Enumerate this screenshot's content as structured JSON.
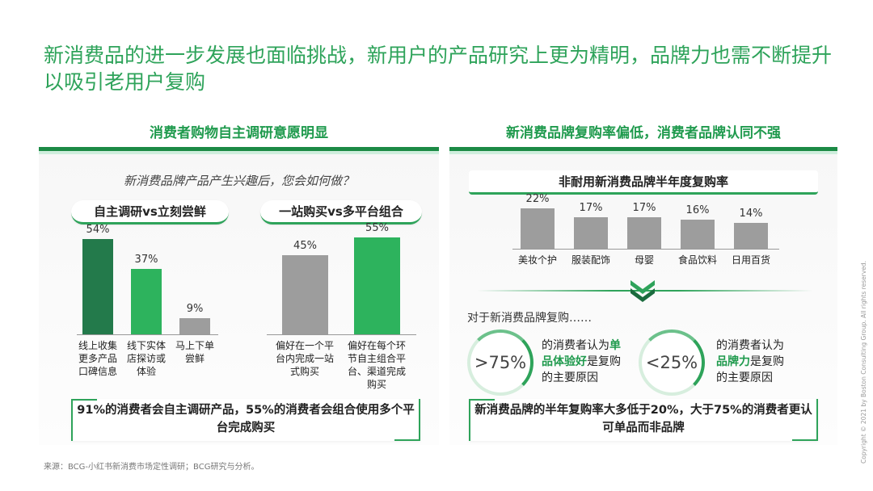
{
  "title": "新消费品的进一步发展也面临挑战，新用户的产品研究上更为精明，品牌力也需不断提升以吸引老用户复购",
  "left_panel": {
    "heading": "消费者购物自主调研意愿明显",
    "question": "新消费品牌产品产生兴趣后，您会如何做？",
    "group1": {
      "label": "自主调研vs立刻尝鲜",
      "bars": [
        {
          "value_label": "54%",
          "value": 54,
          "category": "线上收集更多产品口碑信息",
          "color": "#237a4b"
        },
        {
          "value_label": "37%",
          "value": 37,
          "category": "线下实体店探访或体验",
          "color": "#2db35d"
        },
        {
          "value_label": "9%",
          "value": 9,
          "category": "马上下单尝鲜",
          "color": "#9d9d9d"
        }
      ]
    },
    "group2": {
      "label": "一站购买vs多平台组合",
      "bars": [
        {
          "value_label": "45%",
          "value": 45,
          "category": "偏好在一个平台内完成一站式购买",
          "color": "#9d9d9d"
        },
        {
          "value_label": "55%",
          "value": 55,
          "category": "偏好在每个环节自主组合平台、渠道完成购买",
          "color": "#2db35d"
        }
      ]
    },
    "conclusion": "91%的消费者会自主调研产品，55%的消费者会组合使用多个平台完成购买"
  },
  "right_panel": {
    "heading": "新消费品牌复购率偏低，消费者品牌认同不强",
    "chart_title": "非耐用新消费品牌半年度复购率",
    "bars": [
      {
        "value_label": "22%",
        "value": 22,
        "category": "美妆个护"
      },
      {
        "value_label": "17%",
        "value": 17,
        "category": "服装配饰"
      },
      {
        "value_label": "17%",
        "value": 17,
        "category": "母婴"
      },
      {
        "value_label": "16%",
        "value": 16,
        "category": "食品饮料"
      },
      {
        "value_label": "14%",
        "value": 14,
        "category": "日用百货"
      }
    ],
    "intro": "对于新消费品牌复购……",
    "stat1": {
      "value": ">75%",
      "pre": "的消费者认为",
      "highlight1": "单",
      "highlight2": "品体验好",
      "post": "是复购",
      "line3": "的主要原因"
    },
    "stat2": {
      "value": "<25%",
      "pre": "的消费者认为",
      "highlight": "品牌力",
      "post": "是复购",
      "line3": "的主要原因"
    },
    "conclusion": "新消费品牌的半年复购率大多低于20%，大于75%的消费者更认可单品而非品牌"
  },
  "source": "来源：BCG-小红书新消费市场定性调研；BCG研究与分析。",
  "copyright": "Copyright © 2021 by Boston Consulting Group. All rights reserved.",
  "chart_data": [
    {
      "type": "bar",
      "title": "自主调研vs立刻尝鲜",
      "categories": [
        "线上收集更多产品口碑信息",
        "线下实体店探访或体验",
        "马上下单尝鲜"
      ],
      "values": [
        54,
        37,
        9
      ]
    },
    {
      "type": "bar",
      "title": "一站购买vs多平台组合",
      "categories": [
        "偏好在一个平台内完成一站式购买",
        "偏好在每个环节自主组合平台、渠道完成购买"
      ],
      "values": [
        45,
        55
      ]
    },
    {
      "type": "bar",
      "title": "非耐用新消费品牌半年度复购率",
      "categories": [
        "美妆个护",
        "服装配饰",
        "母婴",
        "食品饮料",
        "日用百货"
      ],
      "values": [
        22,
        17,
        17,
        16,
        14
      ]
    }
  ]
}
